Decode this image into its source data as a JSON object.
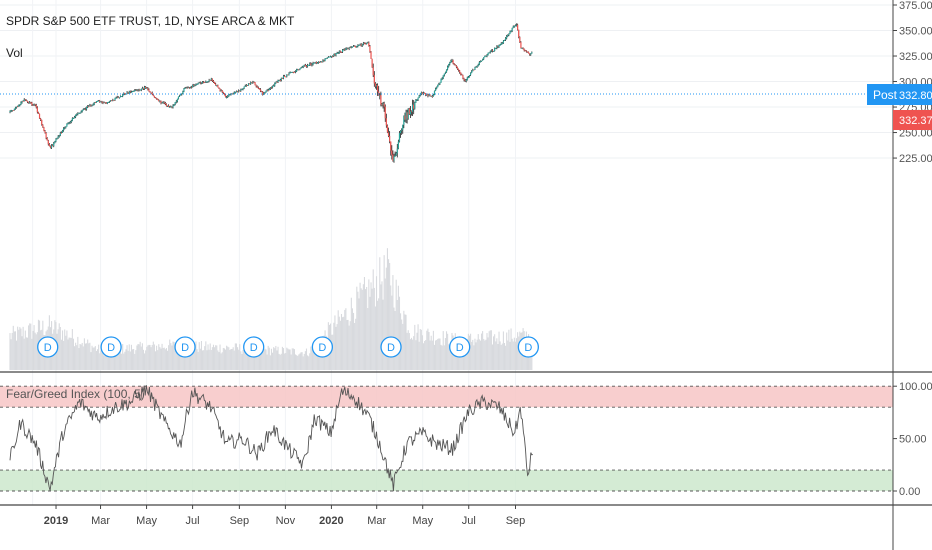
{
  "header": {
    "symbol_line": "SPDR S&P 500 ETF TRUST, 1D, NYSE ARCA & MKT",
    "vol_label": "Vol"
  },
  "indicator": {
    "label": "Fear/Greed Index (100, 5)"
  },
  "price_scale": {
    "ticks": [
      "375.00",
      "350.00",
      "325.00",
      "300.00",
      "275.00",
      "250.00",
      "225.00"
    ]
  },
  "price_tags": {
    "post_label": "Post",
    "post_price": "332.80",
    "last_price": "332.37"
  },
  "indicator_scale": {
    "ticks": [
      "100.00",
      "50.00",
      "0.00"
    ]
  },
  "time_axis": {
    "labels": [
      "2019",
      "Mar",
      "May",
      "Jul",
      "Sep",
      "Nov",
      "2020",
      "Mar",
      "May",
      "Jul",
      "Sep"
    ]
  },
  "dividend_marker": "D",
  "colors": {
    "up": "#26a69a",
    "down": "#ef5350",
    "post_line": "#2196f3",
    "overbought": "#f7c5c5",
    "oversold": "#cce8cc"
  },
  "chart_data": [
    {
      "type": "line",
      "title": "SPDR S&P 500 ETF TRUST, 1D, NYSE ARCA & MKT",
      "xlabel": "",
      "ylabel": "",
      "ylim": [
        210,
        375
      ],
      "x": [
        "2018-11-01",
        "2018-11-20",
        "2018-12-05",
        "2018-12-24",
        "2019-01-15",
        "2019-02-01",
        "2019-02-25",
        "2019-03-10",
        "2019-04-01",
        "2019-04-30",
        "2019-05-15",
        "2019-06-03",
        "2019-06-20",
        "2019-07-26",
        "2019-08-14",
        "2019-09-01",
        "2019-09-19",
        "2019-10-02",
        "2019-10-28",
        "2019-11-25",
        "2019-12-20",
        "2020-01-17",
        "2020-02-19",
        "2020-02-28",
        "2020-03-10",
        "2020-03-23",
        "2020-04-06",
        "2020-04-29",
        "2020-05-13",
        "2020-06-08",
        "2020-06-26",
        "2020-07-21",
        "2020-08-12",
        "2020-09-02",
        "2020-09-08",
        "2020-09-21",
        "2020-09-24"
      ],
      "series": [
        {
          "values": [
            270,
            282,
            276,
            234,
            258,
            270,
            281,
            279,
            288,
            294,
            282,
            274,
            293,
            302,
            285,
            291,
            300,
            288,
            304,
            315,
            320,
            331,
            338,
            296,
            275,
            222,
            263,
            289,
            285,
            321,
            301,
            324,
            336,
            357,
            334,
            326,
            332
          ]
        }
      ],
      "grid": true
    },
    {
      "type": "bar",
      "title": "Vol",
      "x": [
        "2018-11-01",
        "2018-12-24",
        "2019-03-01",
        "2019-06-01",
        "2019-09-01",
        "2019-12-01",
        "2020-03-16",
        "2020-04-15",
        "2020-06-15",
        "2020-09-08"
      ],
      "values": [
        0.35,
        0.45,
        0.2,
        0.25,
        0.22,
        0.18,
        1.0,
        0.4,
        0.3,
        0.35
      ]
    },
    {
      "type": "line",
      "title": "Fear/Greed Index (100, 5)",
      "ylim": [
        -12,
        108
      ],
      "bands": {
        "upper": [
          80,
          100
        ],
        "lower": [
          0,
          20
        ]
      },
      "x": [
        "2018-11-01",
        "2018-11-15",
        "2018-12-05",
        "2018-12-24",
        "2019-01-10",
        "2019-02-01",
        "2019-02-25",
        "2019-03-20",
        "2019-04-10",
        "2019-05-01",
        "2019-05-25",
        "2019-06-15",
        "2019-06-30",
        "2019-07-25",
        "2019-08-15",
        "2019-09-05",
        "2019-09-25",
        "2019-10-15",
        "2019-11-05",
        "2019-11-25",
        "2019-12-10",
        "2019-12-31",
        "2020-01-15",
        "2020-01-31",
        "2020-02-20",
        "2020-03-05",
        "2020-03-23",
        "2020-04-10",
        "2020-04-30",
        "2020-05-20",
        "2020-06-10",
        "2020-06-30",
        "2020-07-20",
        "2020-08-10",
        "2020-08-31",
        "2020-09-08",
        "2020-09-17",
        "2020-09-24"
      ],
      "series": [
        {
          "values": [
            30,
            65,
            45,
            2,
            55,
            85,
            70,
            80,
            85,
            98,
            65,
            45,
            95,
            80,
            45,
            50,
            35,
            60,
            40,
            25,
            70,
            55,
            95,
            90,
            70,
            45,
            5,
            45,
            55,
            45,
            40,
            75,
            85,
            80,
            55,
            80,
            15,
            40
          ]
        }
      ],
      "grid": true
    }
  ]
}
